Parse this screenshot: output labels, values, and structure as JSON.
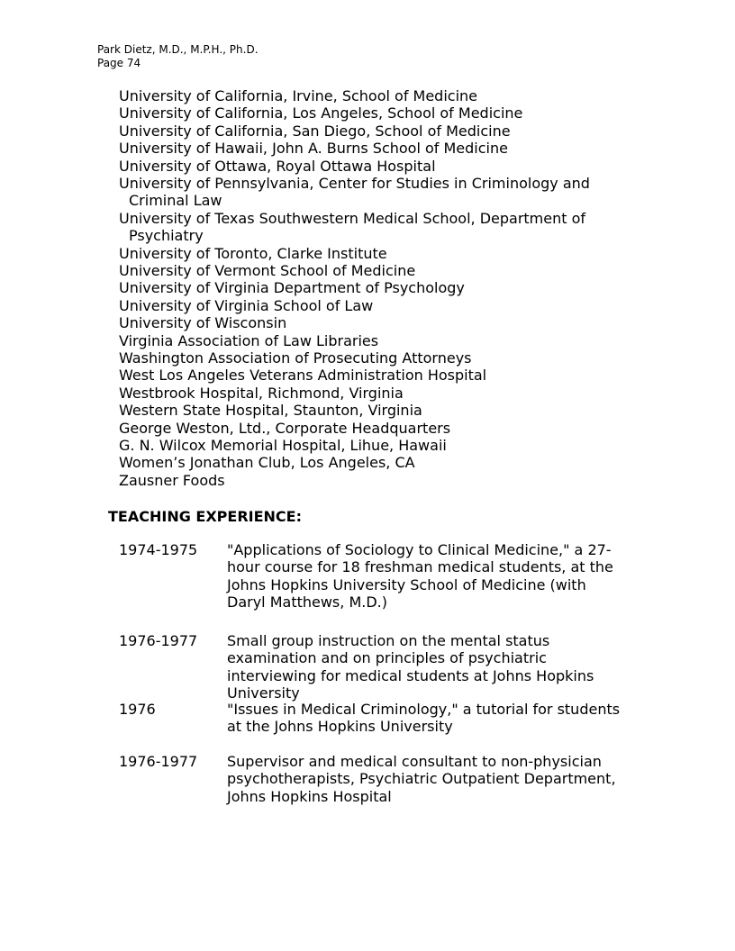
{
  "header": {
    "author": "Park Dietz, M.D., M.P.H., Ph.D.",
    "page": "Page 74"
  },
  "institutions": [
    [
      "University of California, Irvine, School of Medicine"
    ],
    [
      "University of California, Los Angeles, School of Medicine"
    ],
    [
      "University of California, San Diego, School of Medicine"
    ],
    [
      "University of Hawaii, John A. Burns School of Medicine"
    ],
    [
      "University of Ottawa, Royal Ottawa Hospital"
    ],
    [
      "University of Pennsylvania, Center for Studies in Criminology and",
      "Criminal Law"
    ],
    [
      "University of Texas Southwestern Medical School, Department of",
      "Psychiatry"
    ],
    [
      "University of Toronto, Clarke Institute"
    ],
    [
      "University of Vermont School of Medicine"
    ],
    [
      "University of Virginia Department of Psychology"
    ],
    [
      "University of Virginia School of Law"
    ],
    [
      "University of Wisconsin"
    ],
    [
      "Virginia Association of Law Libraries"
    ],
    [
      "Washington Association of Prosecuting Attorneys"
    ],
    [
      "West Los Angeles Veterans Administration Hospital"
    ],
    [
      "Westbrook Hospital, Richmond, Virginia"
    ],
    [
      "Western State Hospital, Staunton, Virginia"
    ],
    [
      "George Weston, Ltd., Corporate Headquarters"
    ],
    [
      "G. N. Wilcox Memorial Hospital, Lihue, Hawaii"
    ],
    [
      "Women’s Jonathan Club, Los Angeles, CA"
    ],
    [
      "Zausner Foods"
    ]
  ],
  "teaching": {
    "heading": "TEACHING EXPERIENCE:",
    "entries": [
      {
        "date": "1974-1975",
        "lines": [
          "\"Applications of Sociology to Clinical Medicine,\" a 27-",
          "hour course for 18 freshman medical students, at the",
          "Johns Hopkins University School of Medicine (with",
          "Daryl Matthews, M.D.)"
        ]
      },
      {
        "date": "1976-1977",
        "lines": [
          "Small group instruction on the mental status",
          "examination and on principles of psychiatric",
          "interviewing for medical students at Johns Hopkins",
          "University"
        ]
      },
      {
        "date": "1976",
        "lines": [
          "\"Issues in Medical Criminology,\" a tutorial for students",
          "at the Johns Hopkins University"
        ]
      },
      {
        "date": "1976-1977",
        "lines": [
          "Supervisor and medical consultant to non-physician",
          "psychotherapists, Psychiatric Outpatient Department,",
          "Johns Hopkins Hospital"
        ]
      }
    ]
  }
}
